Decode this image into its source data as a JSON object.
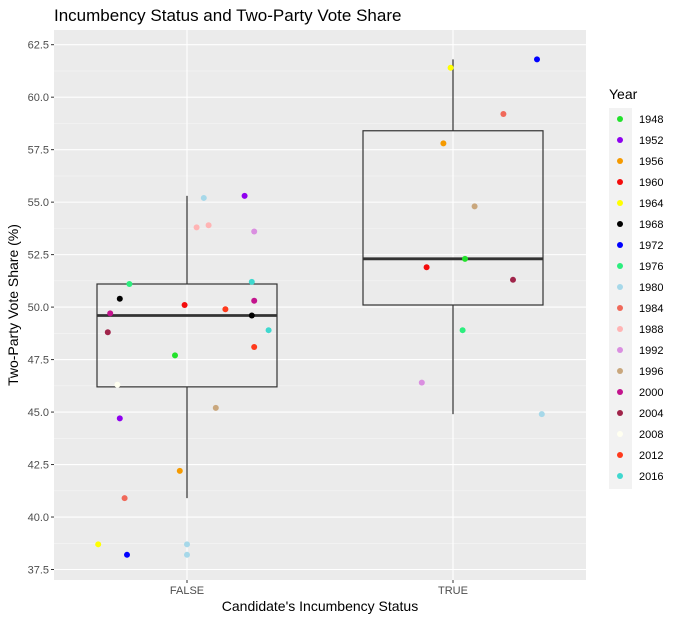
{
  "chart_data": {
    "type": "box+jitter",
    "title": "Incumbency Status and Two-Party Vote Share",
    "xlabel": "Candidate's Incumbency Status",
    "ylabel": "Two-Party Vote Share (%)",
    "categories": [
      "FALSE",
      "TRUE"
    ],
    "ylim": [
      37.0,
      63.2
    ],
    "yticks": [
      37.5,
      40.0,
      42.5,
      45.0,
      47.5,
      50.0,
      52.5,
      55.0,
      57.5,
      60.0,
      62.5
    ],
    "ytick_labels": [
      "37.5",
      "40.0",
      "42.5",
      "45.0",
      "47.5",
      "50.0",
      "52.5",
      "55.0",
      "57.5",
      "60.0",
      "62.5"
    ],
    "grid": true,
    "legend": {
      "title": "Year",
      "placement": "right",
      "entries": [
        {
          "label": "1948",
          "color": "#22e22b"
        },
        {
          "label": "1952",
          "color": "#8f00ef"
        },
        {
          "label": "1956",
          "color": "#f59a00"
        },
        {
          "label": "1960",
          "color": "#f40c0c"
        },
        {
          "label": "1964",
          "color": "#ffff00"
        },
        {
          "label": "1968",
          "color": "#000000"
        },
        {
          "label": "1972",
          "color": "#0000ff"
        },
        {
          "label": "1976",
          "color": "#2cee7e"
        },
        {
          "label": "1980",
          "color": "#a6d8e9"
        },
        {
          "label": "1984",
          "color": "#f0695a"
        },
        {
          "label": "1988",
          "color": "#ffb4b4"
        },
        {
          "label": "1992",
          "color": "#da8fe0"
        },
        {
          "label": "1996",
          "color": "#c9a77d"
        },
        {
          "label": "2000",
          "color": "#c3148d"
        },
        {
          "label": "2004",
          "color": "#a0244a"
        },
        {
          "label": "2008",
          "color": "#fffff0"
        },
        {
          "label": "2012",
          "color": "#ff3a1c"
        },
        {
          "label": "2016",
          "color": "#3fd8cf"
        }
      ]
    },
    "boxes": [
      {
        "category": "FALSE",
        "ymin": 40.9,
        "q1": 46.2,
        "median": 49.6,
        "q3": 51.1,
        "ymax": 55.3
      },
      {
        "category": "TRUE",
        "ymin": 44.9,
        "q1": 50.1,
        "median": 52.3,
        "q3": 58.4,
        "ymax": 61.8
      }
    ],
    "points": [
      {
        "category": "FALSE",
        "year": "1948",
        "y": 47.7,
        "jitter": -0.05
      },
      {
        "category": "FALSE",
        "year": "1952",
        "y": 55.3,
        "jitter": 0.24
      },
      {
        "category": "FALSE",
        "year": "1952",
        "y": 44.7,
        "jitter": -0.28
      },
      {
        "category": "FALSE",
        "year": "1956",
        "y": 42.2,
        "jitter": -0.03
      },
      {
        "category": "FALSE",
        "year": "1960",
        "y": 50.1,
        "jitter": -0.01
      },
      {
        "category": "FALSE",
        "year": "1964",
        "y": 38.7,
        "jitter": -0.37
      },
      {
        "category": "FALSE",
        "year": "1968",
        "y": 50.4,
        "jitter": -0.28
      },
      {
        "category": "FALSE",
        "year": "1968",
        "y": 49.6,
        "jitter": 0.27
      },
      {
        "category": "FALSE",
        "year": "1972",
        "y": 38.2,
        "jitter": -0.25
      },
      {
        "category": "FALSE",
        "year": "1976",
        "y": 51.1,
        "jitter": -0.24
      },
      {
        "category": "FALSE",
        "year": "1980",
        "y": 55.2,
        "jitter": 0.07
      },
      {
        "category": "FALSE",
        "year": "1980",
        "y": 38.7,
        "jitter": 0.0
      },
      {
        "category": "FALSE",
        "year": "1980",
        "y": 38.2,
        "jitter": 0.0
      },
      {
        "category": "FALSE",
        "year": "1984",
        "y": 40.9,
        "jitter": -0.26
      },
      {
        "category": "FALSE",
        "year": "1988",
        "y": 53.9,
        "jitter": 0.09
      },
      {
        "category": "FALSE",
        "year": "1988",
        "y": 53.8,
        "jitter": 0.04
      },
      {
        "category": "FALSE",
        "year": "1992",
        "y": 53.6,
        "jitter": 0.28
      },
      {
        "category": "FALSE",
        "year": "1996",
        "y": 45.2,
        "jitter": 0.12
      },
      {
        "category": "FALSE",
        "year": "2000",
        "y": 50.3,
        "jitter": 0.28
      },
      {
        "category": "FALSE",
        "year": "2000",
        "y": 49.7,
        "jitter": -0.32
      },
      {
        "category": "FALSE",
        "year": "2004",
        "y": 48.8,
        "jitter": -0.33
      },
      {
        "category": "FALSE",
        "year": "2008",
        "y": 46.3,
        "jitter": -0.29
      },
      {
        "category": "FALSE",
        "year": "2012",
        "y": 49.9,
        "jitter": 0.16
      },
      {
        "category": "FALSE",
        "year": "2012",
        "y": 48.1,
        "jitter": 0.28
      },
      {
        "category": "FALSE",
        "year": "2016",
        "y": 51.2,
        "jitter": 0.27
      },
      {
        "category": "FALSE",
        "year": "2016",
        "y": 48.9,
        "jitter": 0.34
      },
      {
        "category": "TRUE",
        "year": "1948",
        "y": 52.3,
        "jitter": 0.05
      },
      {
        "category": "TRUE",
        "year": "1956",
        "y": 57.8,
        "jitter": -0.04
      },
      {
        "category": "TRUE",
        "year": "1960",
        "y": 51.9,
        "jitter": -0.11
      },
      {
        "category": "TRUE",
        "year": "1964",
        "y": 61.4,
        "jitter": -0.01
      },
      {
        "category": "TRUE",
        "year": "1972",
        "y": 61.8,
        "jitter": 0.35
      },
      {
        "category": "TRUE",
        "year": "1976",
        "y": 48.9,
        "jitter": 0.04
      },
      {
        "category": "TRUE",
        "year": "1980",
        "y": 44.9,
        "jitter": 0.37
      },
      {
        "category": "TRUE",
        "year": "1984",
        "y": 59.2,
        "jitter": 0.21
      },
      {
        "category": "TRUE",
        "year": "1992",
        "y": 46.4,
        "jitter": -0.13
      },
      {
        "category": "TRUE",
        "year": "1996",
        "y": 54.8,
        "jitter": 0.09
      },
      {
        "category": "TRUE",
        "year": "2004",
        "y": 51.3,
        "jitter": 0.25
      }
    ]
  }
}
